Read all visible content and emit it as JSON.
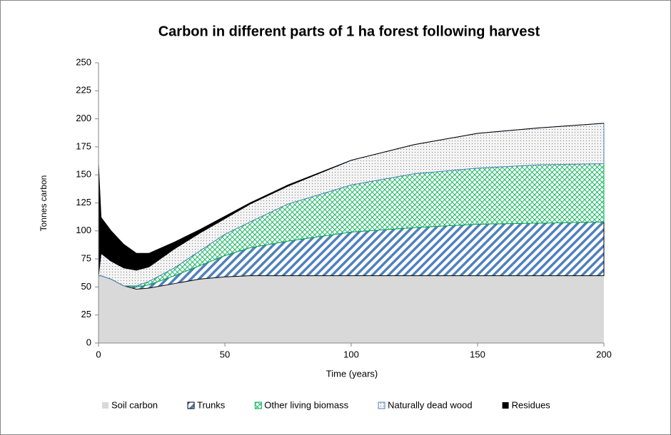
{
  "chart_data": {
    "type": "area",
    "stacked": true,
    "title": "Carbon in different parts of 1 ha forest following harvest",
    "x_label": "Time (years)",
    "y_label": "Tonnes carbon",
    "x": [
      0,
      1,
      5,
      10,
      15,
      20,
      30,
      40,
      50,
      60,
      75,
      100,
      125,
      150,
      175,
      200
    ],
    "series": [
      {
        "name": "Soil carbon",
        "color": "#d9d9d9",
        "pattern": "solid",
        "values": [
          60,
          60,
          57,
          51,
          48,
          49,
          53,
          57,
          59,
          60,
          60,
          60,
          60,
          60,
          60,
          60
        ]
      },
      {
        "name": "Trunks",
        "color": "#4f81bd",
        "pattern": "diagonal",
        "values": [
          0,
          0,
          0,
          0,
          2,
          3,
          7,
          12,
          19,
          25,
          31,
          39,
          43,
          46,
          47,
          48
        ]
      },
      {
        "name": "Other living biomass",
        "color": "#00b050",
        "pattern": "crosshatch",
        "values": [
          0,
          0,
          0,
          0,
          1,
          3,
          7,
          13,
          19,
          23,
          33,
          42,
          48,
          50,
          52,
          52
        ]
      },
      {
        "name": "Naturally dead wood",
        "color": "#4f81bd",
        "pattern": "dots",
        "values": [
          0,
          20,
          16,
          16,
          14,
          13,
          17,
          16,
          14,
          16,
          16,
          22,
          26,
          31,
          33,
          36
        ]
      },
      {
        "name": "Residues",
        "color": "#000000",
        "pattern": "solid",
        "values": [
          100,
          32,
          27,
          21,
          15,
          12,
          6,
          3,
          2,
          1,
          1,
          0,
          0,
          0,
          0,
          0
        ]
      }
    ],
    "xlim": [
      0,
      200
    ],
    "xticks": [
      0,
      50,
      100,
      150,
      200
    ],
    "ylim": [
      0,
      250
    ],
    "yticks": [
      0,
      25,
      50,
      75,
      100,
      125,
      150,
      175,
      200,
      225,
      250
    ],
    "grid": false,
    "legend": "bottom"
  }
}
